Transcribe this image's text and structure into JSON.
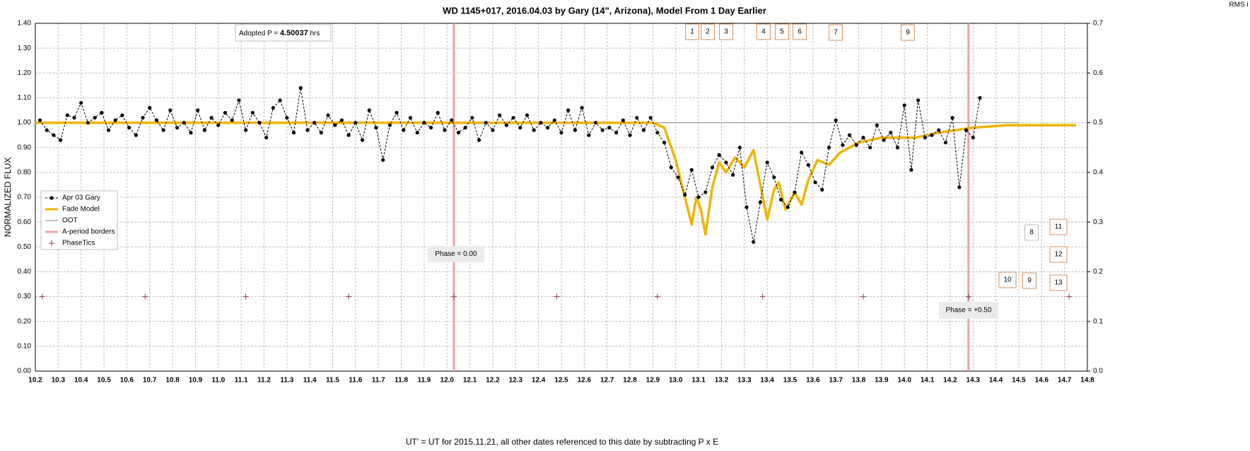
{
  "chart_data": {
    "type": "line",
    "title": "WD 1145+017, 2016.04.03 by Gary (14\", Arizona), Model From 1 Day Earlier",
    "x_label": "UT' = UT for 2015.11.21, all other dates referenced to this date by subtracting P x E",
    "y_label": "NORMALIZED FLUX",
    "y2_label": "RMS i",
    "xlim": [
      10.2,
      14.8
    ],
    "ylim": [
      0,
      1.4
    ],
    "y2lim": [
      0,
      0.7
    ],
    "grid": true,
    "legend": "left",
    "xticks": [
      10.2,
      10.3,
      10.4,
      10.5,
      10.6,
      10.7,
      10.8,
      10.9,
      {
        "value": 11,
        "label": "11.0"
      },
      11.1,
      11.2,
      11.3,
      11.4,
      11.5,
      11.6,
      11.7,
      11.8,
      11.9,
      {
        "value": 12,
        "label": "12.0"
      },
      12.1,
      12.2,
      12.3,
      12.4,
      12.5,
      12.6,
      12.7,
      12.8,
      12.9,
      {
        "value": 13,
        "label": "13.0"
      },
      13.1,
      13.2,
      13.3,
      13.4,
      13.5,
      13.6,
      13.7,
      13.8,
      13.9,
      {
        "value": 14,
        "label": "14.0"
      },
      14.1,
      14.2,
      14.3,
      14.4,
      14.5,
      14.6,
      14.7,
      14.8
    ],
    "yticks": [
      {
        "value": 0,
        "label": "0.00"
      },
      {
        "value": 0.1,
        "label": "0.10"
      },
      {
        "value": 0.2,
        "label": "0.20"
      },
      {
        "value": 0.3,
        "label": "0.30"
      },
      {
        "value": 0.4,
        "label": "0.40"
      },
      {
        "value": 0.5,
        "label": "0.50"
      },
      {
        "value": 0.6,
        "label": "0.60"
      },
      {
        "value": 0.7,
        "label": "0.70"
      },
      {
        "value": 0.8,
        "label": "0.80"
      },
      {
        "value": 0.9,
        "label": "0.90"
      },
      {
        "value": 1,
        "label": "1.00"
      },
      {
        "value": 1.1,
        "label": "1.10"
      },
      {
        "value": 1.2,
        "label": "1.20"
      },
      {
        "value": 1.3,
        "label": "1.30"
      },
      {
        "value": 1.4,
        "label": "1.40"
      }
    ],
    "y2ticks": [
      {
        "value": 0,
        "label": "0.0"
      },
      0.1,
      0.2,
      0.3,
      0.4,
      0.5,
      0.6,
      0.7
    ],
    "series": [
      {
        "name": "Apr 03 Gary",
        "kind": "dots-dashed",
        "color": "#000000",
        "x": [
          10.22,
          10.25,
          10.28,
          10.31,
          10.34,
          10.37,
          10.4,
          10.43,
          10.46,
          10.49,
          10.52,
          10.55,
          10.58,
          10.61,
          10.64,
          10.67,
          10.7,
          10.73,
          10.76,
          10.79,
          10.82,
          10.85,
          10.88,
          10.91,
          10.94,
          10.97,
          11,
          11.03,
          11.06,
          11.09,
          11.12,
          11.15,
          11.18,
          11.21,
          11.24,
          11.27,
          11.3,
          11.33,
          11.36,
          11.39,
          11.42,
          11.45,
          11.48,
          11.51,
          11.54,
          11.57,
          11.6,
          11.63,
          11.66,
          11.69,
          11.72,
          11.75,
          11.78,
          11.81,
          11.84,
          11.87,
          11.9,
          11.93,
          11.96,
          11.99,
          12.02,
          12.05,
          12.08,
          12.11,
          12.14,
          12.17,
          12.2,
          12.23,
          12.26,
          12.29,
          12.32,
          12.35,
          12.38,
          12.41,
          12.44,
          12.47,
          12.5,
          12.53,
          12.56,
          12.59,
          12.62,
          12.65,
          12.68,
          12.71,
          12.74,
          12.77,
          12.8,
          12.83,
          12.86,
          12.89,
          12.92,
          12.95,
          12.98,
          13.01,
          13.04,
          13.07,
          13.1,
          13.13,
          13.16,
          13.19,
          13.22,
          13.25,
          13.28,
          13.31,
          13.34,
          13.37,
          13.4,
          13.43,
          13.46,
          13.49,
          13.52,
          13.55,
          13.58,
          13.61,
          13.64,
          13.67,
          13.7,
          13.73,
          13.76,
          13.79,
          13.82,
          13.85,
          13.88,
          13.91,
          13.94,
          13.97,
          14,
          14.03,
          14.06,
          14.09,
          14.12,
          14.15,
          14.18,
          14.21,
          14.24,
          14.27,
          14.3,
          14.33
        ],
        "values": [
          1.01,
          0.97,
          0.95,
          0.93,
          1.03,
          1.02,
          1.08,
          1,
          1.02,
          1.04,
          0.97,
          1.01,
          1.03,
          0.98,
          0.95,
          1.02,
          1.06,
          1.01,
          0.97,
          1.05,
          0.98,
          1,
          0.96,
          1.05,
          0.97,
          1.02,
          0.99,
          1.04,
          1.01,
          1.09,
          0.97,
          1.04,
          1,
          0.94,
          1.06,
          1.09,
          1.02,
          0.96,
          1.14,
          0.97,
          1,
          0.96,
          1.03,
          0.99,
          1.01,
          0.95,
          1,
          0.93,
          1.05,
          0.98,
          0.85,
          0.99,
          1.04,
          0.97,
          1.02,
          0.96,
          1,
          0.98,
          1.04,
          0.97,
          1.01,
          0.96,
          0.98,
          1.02,
          0.93,
          1,
          0.97,
          1.03,
          0.99,
          1.02,
          0.98,
          1.03,
          0.97,
          1,
          0.98,
          1.01,
          0.96,
          1.05,
          0.97,
          1.06,
          0.95,
          1,
          0.97,
          0.98,
          0.96,
          1.01,
          0.95,
          1.02,
          0.97,
          1.02,
          0.96,
          0.92,
          0.82,
          0.78,
          0.71,
          0.81,
          0.7,
          0.72,
          0.82,
          0.87,
          0.84,
          0.79,
          0.9,
          0.66,
          0.52,
          0.68,
          0.84,
          0.78,
          0.69,
          0.66,
          0.72,
          0.88,
          0.83,
          0.76,
          0.73,
          0.9,
          1.01,
          0.91,
          0.95,
          0.91,
          0.94,
          0.9,
          0.99,
          0.93,
          0.96,
          0.9,
          1.07,
          0.81,
          1.09,
          0.94,
          0.95,
          0.97,
          0.92,
          1.02,
          0.74,
          0.97,
          0.94,
          1.1
        ]
      },
      {
        "name": "Fade Model",
        "kind": "line",
        "color": "#f0b400",
        "x": [
          10.2,
          12.9,
          12.95,
          13,
          13.04,
          13.07,
          13.09,
          13.11,
          13.13,
          13.16,
          13.19,
          13.22,
          13.26,
          13.3,
          13.34,
          13.37,
          13.4,
          13.43,
          13.45,
          13.48,
          13.52,
          13.55,
          13.58,
          13.62,
          13.67,
          13.72,
          13.8,
          13.9,
          14.05,
          14.15,
          14.3,
          14.45,
          14.75
        ],
        "values": [
          1,
          1,
          0.98,
          0.85,
          0.7,
          0.59,
          0.7,
          0.65,
          0.55,
          0.74,
          0.84,
          0.8,
          0.86,
          0.82,
          0.89,
          0.75,
          0.61,
          0.73,
          0.76,
          0.65,
          0.72,
          0.67,
          0.77,
          0.85,
          0.83,
          0.88,
          0.92,
          0.94,
          0.94,
          0.96,
          0.98,
          0.99,
          0.99
        ]
      },
      {
        "name": "OOT",
        "kind": "thin",
        "color": "#8c8c8c",
        "x": [
          10.2,
          14.5
        ],
        "values": [
          1,
          1
        ]
      },
      {
        "name": "A-period borders",
        "kind": "vline",
        "color": "#f2a0a0",
        "x": [
          12.03,
          14.28
        ]
      },
      {
        "name": "PhaseTics",
        "kind": "plus",
        "color": "#993366",
        "x": [
          10.23,
          10.68,
          11.12,
          11.57,
          12.03,
          12.48,
          12.92,
          13.38,
          13.82,
          14.28,
          14.72
        ],
        "values": [
          0.3,
          0.3,
          0.3,
          0.3,
          0.3,
          0.3,
          0.3,
          0.3,
          0.3,
          0.3,
          0.3
        ]
      }
    ],
    "adopted": {
      "label": "Adopted P =",
      "value": 4.50037,
      "unit": "hrs"
    },
    "phase_labels": [
      "Phase = 0.00",
      "Phase = +0.50"
    ],
    "dip_labels": [
      "1",
      "2",
      "3",
      "4",
      "5",
      "6",
      "7",
      "9",
      "8",
      "11",
      "12",
      "10",
      "9",
      "13"
    ]
  }
}
